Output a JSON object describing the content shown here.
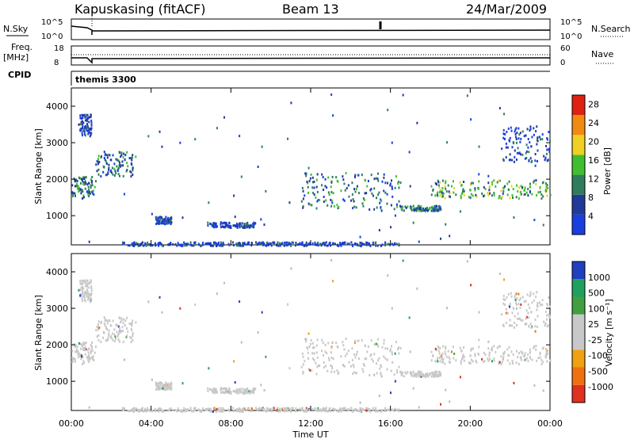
{
  "header": {
    "station": "Kapuskasing (fitACF)",
    "beam": "Beam 13",
    "date": "24/Mar/2009"
  },
  "strip_labels": {
    "nsky": "N.Sky",
    "nsky_ticks": [
      "10^5",
      "10^0"
    ],
    "nsearch": "N.Search",
    "nsearch_ticks": [
      "10^5",
      "10^0"
    ],
    "freq_top": "Freq.",
    "freq_unit": "[MHz]",
    "freq_ticks": [
      "18",
      "8"
    ],
    "nave": "Nave",
    "nave_ticks": [
      "60",
      "0"
    ],
    "cpid": "CPID",
    "cpid_value": "themis 3300"
  },
  "colors": {
    "power": [
      "#1a3fe0",
      "#203a9a",
      "#2f7d5c",
      "#3fbf2f",
      "#f0d020",
      "#f08a10",
      "#e02010"
    ],
    "velocity": [
      "#e03020",
      "#f07010",
      "#f0a010",
      "#c8c8c8",
      "#c8c8c8",
      "#40a040",
      "#20a060",
      "#2040c0"
    ],
    "ground": "#bbbbbb"
  },
  "chart_data": [
    {
      "type": "heatmap",
      "name": "power",
      "ylabel": "Slant Range [km]",
      "yticks": [
        "1000",
        "2000",
        "3000",
        "4000"
      ],
      "ylim": [
        200,
        4500
      ],
      "xlim": [
        0,
        24
      ],
      "colorbar_label": "Power [dB]",
      "colorbar_ticks": [
        "4",
        "8",
        "12",
        "16",
        "20",
        "24",
        "28"
      ],
      "colorbar_range": [
        0,
        30
      ],
      "echo_regions": [
        {
          "t0": 0.0,
          "t1": 1.2,
          "r0": 1500,
          "r1": 2100,
          "level": 2
        },
        {
          "t0": 0.4,
          "t1": 1.0,
          "r0": 3200,
          "r1": 3800,
          "level": 1
        },
        {
          "t0": 1.2,
          "t1": 3.2,
          "r0": 2100,
          "r1": 2800,
          "level": 2
        },
        {
          "t0": 4.2,
          "t1": 5.0,
          "r0": 800,
          "r1": 1000,
          "level": 1
        },
        {
          "t0": 6.8,
          "t1": 9.2,
          "r0": 700,
          "r1": 850,
          "level": 1
        },
        {
          "t0": 11.5,
          "t1": 16.5,
          "r0": 1200,
          "r1": 2200,
          "level": 2
        },
        {
          "t0": 16.5,
          "t1": 18.5,
          "r0": 1150,
          "r1": 1300,
          "level": 2
        },
        {
          "t0": 18.0,
          "t1": 24.0,
          "r0": 1500,
          "r1": 2000,
          "level": 3
        },
        {
          "t0": 21.5,
          "t1": 24.0,
          "r0": 2500,
          "r1": 3500,
          "level": 1
        },
        {
          "t0": 2.5,
          "t1": 16.5,
          "r0": 200,
          "r1": 300,
          "level": 1
        }
      ]
    },
    {
      "type": "heatmap",
      "name": "velocity",
      "ylabel": "Slant Range [km]",
      "yticks": [
        "1000",
        "2000",
        "3000",
        "4000"
      ],
      "ylim": [
        200,
        4500
      ],
      "xlim": [
        0,
        24
      ],
      "colorbar_label": "Velocity [m s⁻¹]",
      "colorbar_ticks": [
        "1000",
        "500",
        "100",
        "25",
        "-25",
        "-100",
        "-500",
        "-1000"
      ],
      "xticks": [
        "00:00",
        "04:00",
        "08:00",
        "12:00",
        "16:00",
        "20:00",
        "00:00"
      ],
      "xlabel": "Time UT"
    }
  ]
}
